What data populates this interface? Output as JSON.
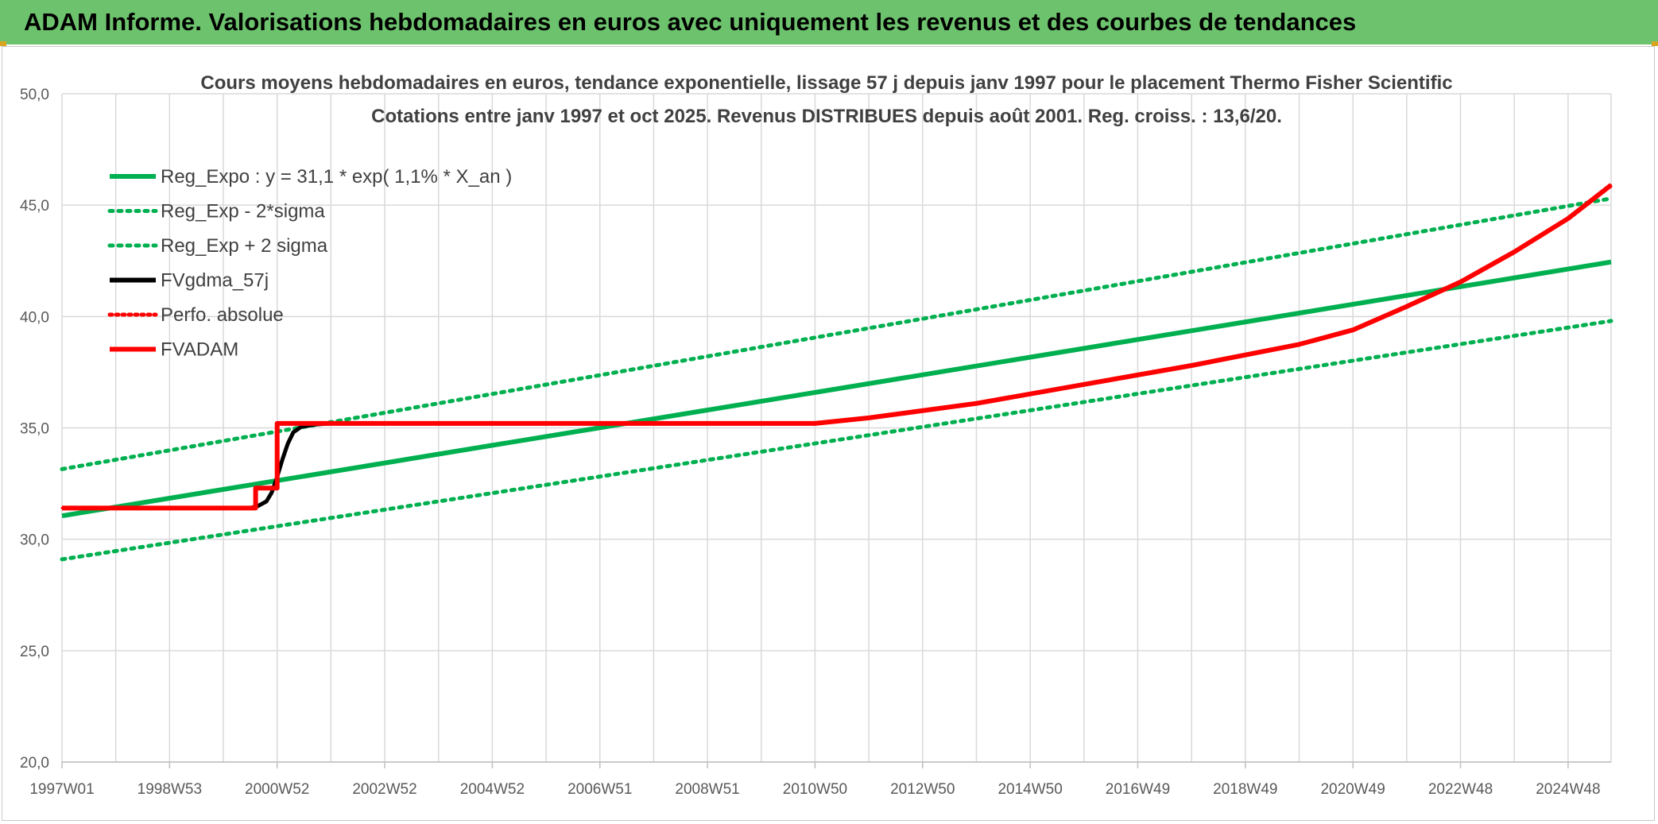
{
  "header": {
    "banner_title": "ADAM Informe. Valorisations hebdomadaires en euros avec uniquement les revenus et des courbes de tendances"
  },
  "colors": {
    "banner_bg": "#6dc36d",
    "green": "#00b050",
    "red": "#ff0000",
    "black": "#000000",
    "grid": "#d9d9d9",
    "axis_text": "#595959",
    "title_text": "#404040"
  },
  "chart_data": {
    "type": "line",
    "title": "Cours moyens hebdomadaires en euros, tendance exponentielle, lissage 57 j depuis janv 1997 pour le placement Thermo Fisher Scientific",
    "subtitle": "Cotations entre janv 1997 et oct 2025. Revenus DISTRIBUES depuis août 2001. Reg. croiss. : 13,6/20.",
    "xlabel": "",
    "ylabel": "",
    "ylim": [
      20,
      50
    ],
    "yticks": [
      "20,0",
      "25,0",
      "30,0",
      "35,0",
      "40,0",
      "45,0",
      "50,0"
    ],
    "xlim": [
      1997.0,
      2025.8
    ],
    "xticks": [
      {
        "label": "1997W01",
        "x": 1997.0
      },
      {
        "label": "1998W53",
        "x": 1999.0
      },
      {
        "label": "2000W52",
        "x": 2001.0
      },
      {
        "label": "2002W52",
        "x": 2003.0
      },
      {
        "label": "2004W52",
        "x": 2005.0
      },
      {
        "label": "2006W51",
        "x": 2007.0
      },
      {
        "label": "2008W51",
        "x": 2009.0
      },
      {
        "label": "2010W50",
        "x": 2011.0
      },
      {
        "label": "2012W50",
        "x": 2013.0
      },
      {
        "label": "2014W50",
        "x": 2015.0
      },
      {
        "label": "2016W49",
        "x": 2017.0
      },
      {
        "label": "2018W49",
        "x": 2019.0
      },
      {
        "label": "2020W49",
        "x": 2021.0
      },
      {
        "label": "2022W48",
        "x": 2023.0
      },
      {
        "label": "2024W48",
        "x": 2025.0
      }
    ],
    "grid": true,
    "legend_position": "top-left",
    "series": [
      {
        "name": "Reg_Expo : y = 31,1 * exp( 1,1% *  X_an )",
        "style": "solid",
        "color": "#00b050",
        "x": [
          1997.0,
          2025.8
        ],
        "y": [
          31.05,
          42.45
        ]
      },
      {
        "name": "Reg_Exp - 2*sigma",
        "style": "dotted",
        "color": "#00b050",
        "x": [
          1997.0,
          2025.8
        ],
        "y": [
          29.1,
          39.8
        ]
      },
      {
        "name": "Reg_Exp + 2 sigma",
        "style": "dotted",
        "color": "#00b050",
        "x": [
          1997.0,
          2025.8
        ],
        "y": [
          33.15,
          45.3
        ]
      },
      {
        "name": "FVgdma_57j",
        "style": "solid",
        "color": "#000000",
        "x": [
          1997.0,
          2000.5,
          2000.65,
          2000.8,
          2000.9,
          2001.0,
          2001.1,
          2001.2,
          2001.3,
          2001.45,
          2001.7,
          2002.0,
          2011.0,
          2012.0,
          2014.0,
          2016.0,
          2018.0,
          2020.0,
          2021.0,
          2022.0,
          2023.0,
          2024.0,
          2025.0,
          2025.8
        ],
        "y": [
          31.4,
          31.4,
          31.5,
          31.7,
          32.1,
          32.8,
          33.6,
          34.3,
          34.8,
          35.05,
          35.15,
          35.2,
          35.2,
          35.45,
          36.1,
          36.95,
          37.8,
          38.75,
          39.4,
          40.45,
          41.55,
          42.9,
          44.4,
          45.9
        ]
      },
      {
        "name": "Perfo. absolue",
        "style": "dotted",
        "color": "#ff0000",
        "x": [
          1997.0,
          2000.6,
          2000.6,
          2001.0,
          2001.0,
          2011.0,
          2012.0,
          2014.0,
          2016.0,
          2018.0,
          2020.0,
          2021.0,
          2022.0,
          2023.0,
          2024.0,
          2025.0,
          2025.8
        ],
        "y": [
          31.4,
          31.4,
          32.3,
          32.3,
          35.2,
          35.2,
          35.45,
          36.1,
          36.95,
          37.8,
          38.75,
          39.4,
          40.45,
          41.55,
          42.9,
          44.4,
          45.9
        ]
      },
      {
        "name": "FVADAM",
        "style": "solid",
        "color": "#ff0000",
        "x": [
          1997.0,
          2000.6,
          2000.6,
          2001.0,
          2001.0,
          2011.0,
          2012.0,
          2014.0,
          2016.0,
          2018.0,
          2020.0,
          2021.0,
          2022.0,
          2023.0,
          2024.0,
          2025.0,
          2025.8
        ],
        "y": [
          31.4,
          31.4,
          32.3,
          32.3,
          35.2,
          35.2,
          35.45,
          36.1,
          36.95,
          37.8,
          38.75,
          39.4,
          40.45,
          41.55,
          42.9,
          44.4,
          45.9
        ]
      }
    ]
  }
}
